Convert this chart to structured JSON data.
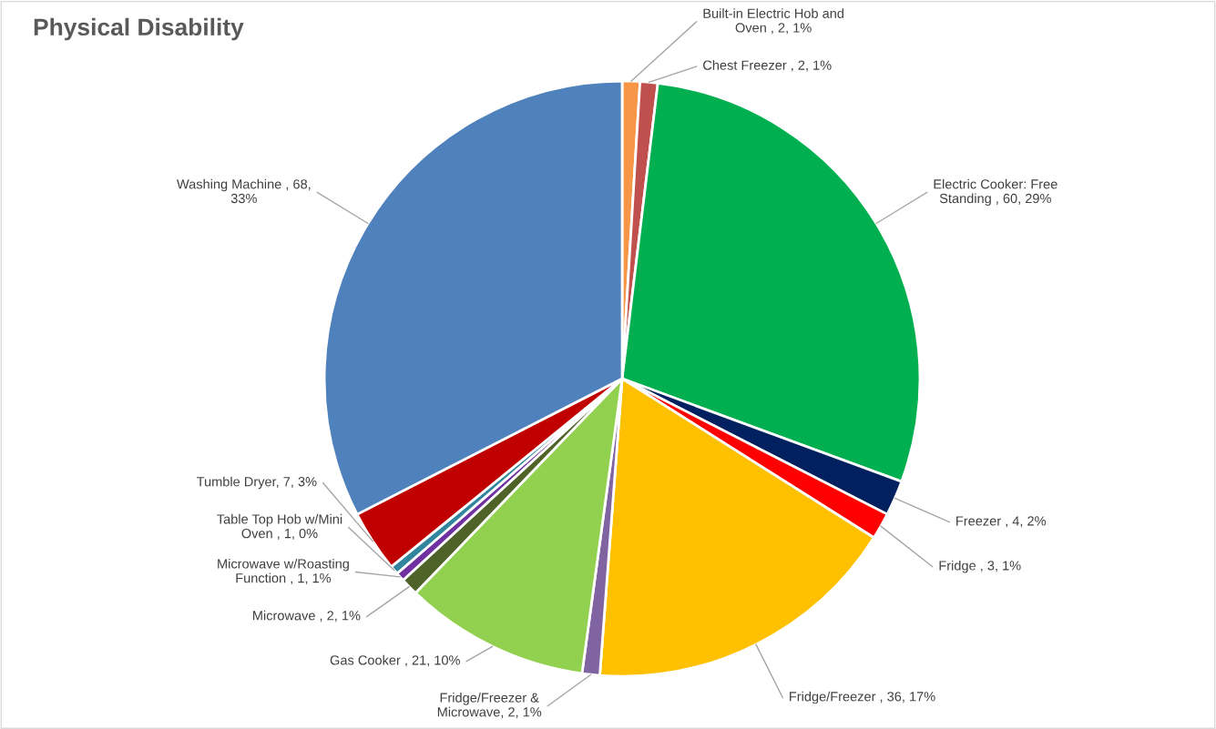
{
  "chart_data": {
    "type": "pie",
    "title": "Physical Disability",
    "categories": [
      "Built-in Electric Hob and\nOven ",
      "Chest Freezer ",
      "Electric Cooker: Free\nStanding ",
      "Freezer ",
      "Fridge ",
      "Fridge/Freezer ",
      "Fridge/Freezer &\nMicrowave",
      "Gas Cooker ",
      "Microwave ",
      "Microwave w/Roasting\nFunction ",
      "Table Top Hob w/Mini\nOven ",
      "Tumble Dryer",
      "Washing Machine "
    ],
    "values": [
      2,
      2,
      60,
      4,
      3,
      36,
      2,
      21,
      2,
      1,
      1,
      7,
      68
    ],
    "value_labels": [
      "2, 1%",
      "2, 1%",
      "60, 29%",
      "4, 2%",
      "3, 1%",
      "36, 17%",
      "2, 1%",
      "21, 10%",
      "2, 1%",
      "1, 1%",
      "1, 0%",
      "7, 3%",
      "68,\n33%"
    ],
    "colors": [
      "#f79646",
      "#c0504d",
      "#00b050",
      "#002060",
      "#ff0000",
      "#ffc000",
      "#8064a2",
      "#92d050",
      "#4f6228",
      "#7030a0",
      "#31859c",
      "#c00000",
      "#4f81bd"
    ],
    "legend": false
  }
}
